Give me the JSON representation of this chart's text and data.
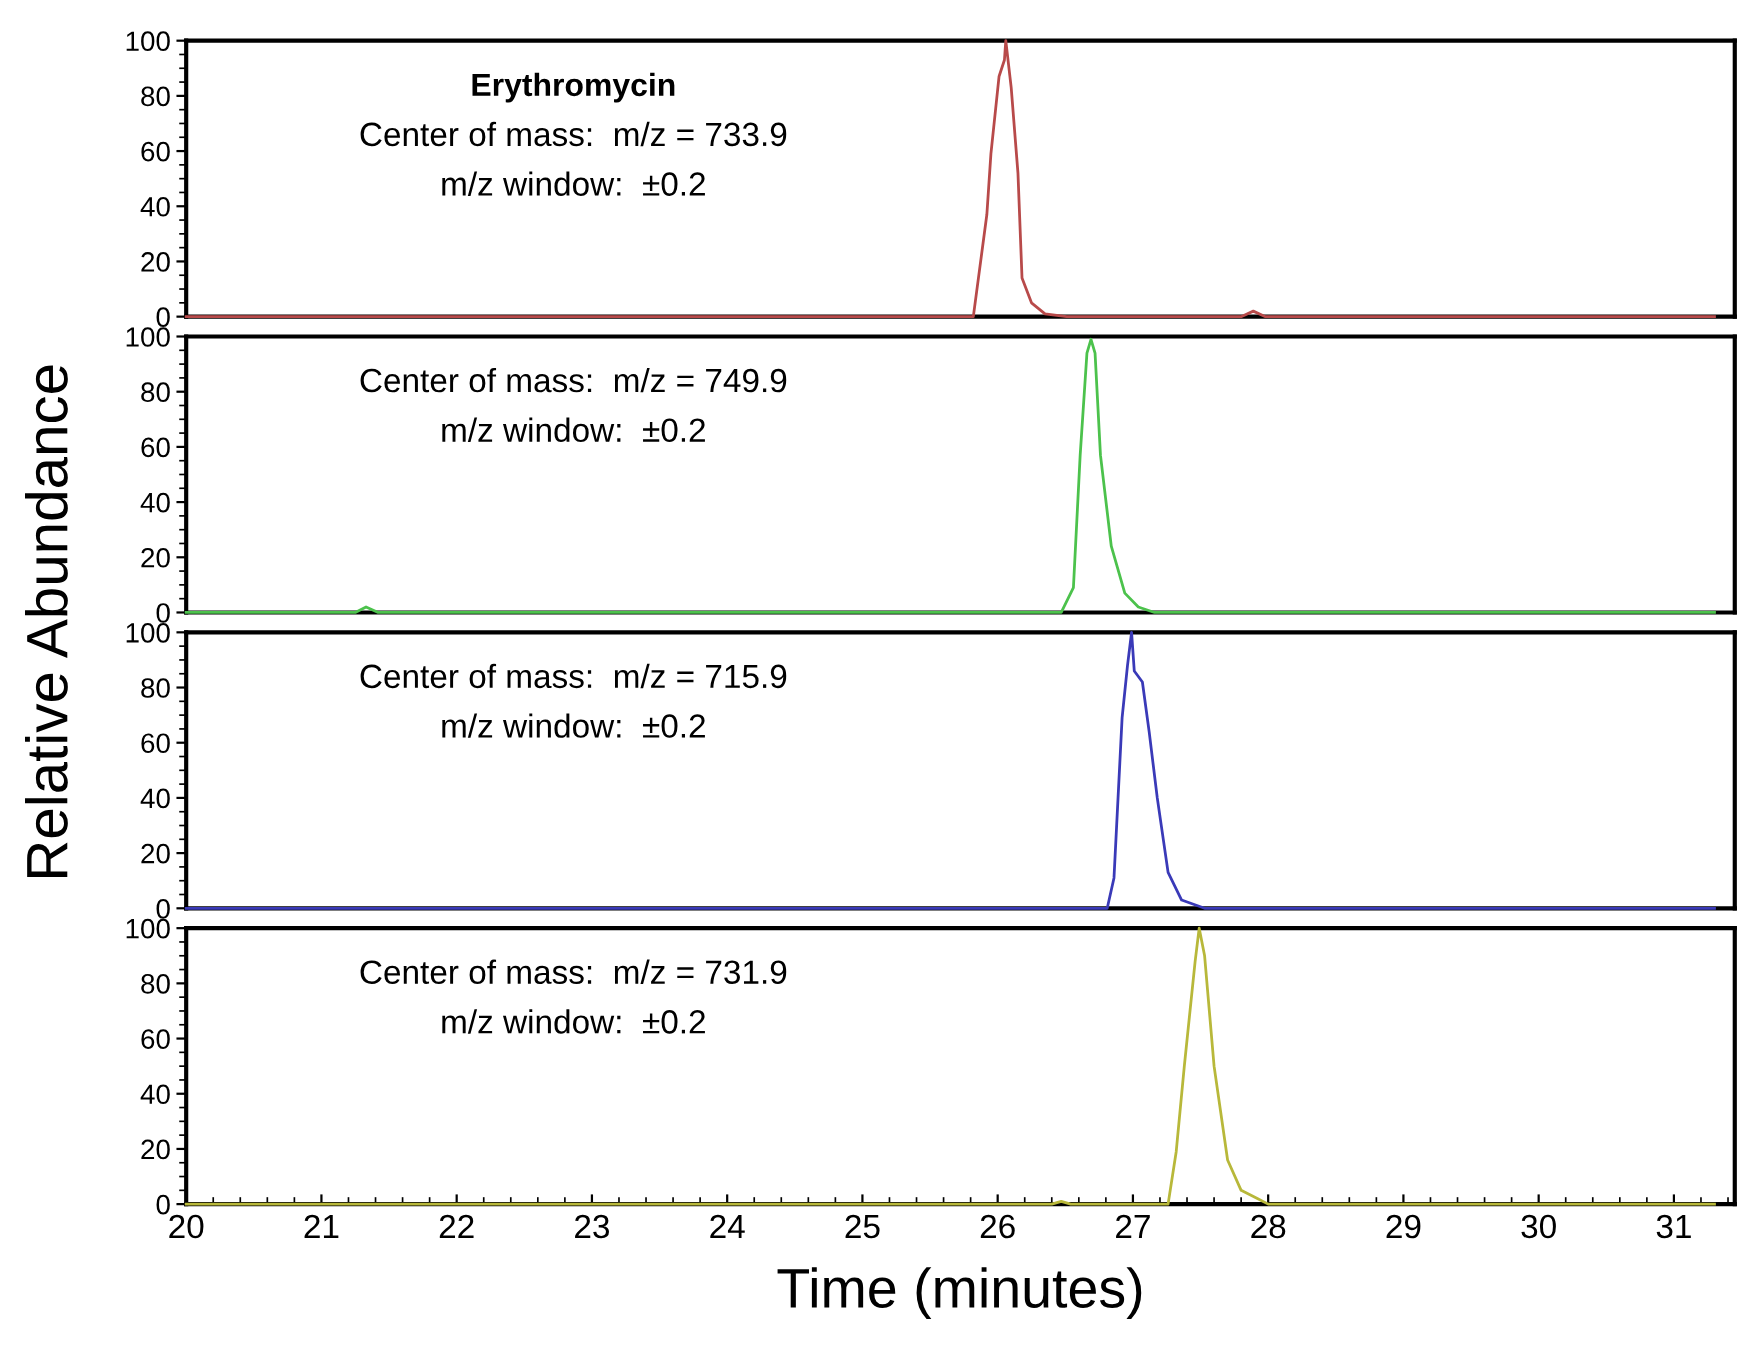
{
  "chart_data": [
    {
      "type": "line",
      "ylabel": "Relative Abundance",
      "xlim": [
        20,
        31.45
      ],
      "ylim": [
        0,
        100
      ],
      "xticks": [
        20,
        21,
        22,
        23,
        24,
        25,
        26,
        27,
        28,
        29,
        30,
        31
      ],
      "yticks": [
        0,
        20,
        40,
        60,
        80,
        100
      ],
      "tick_labels": "y",
      "grid": false,
      "legend": false,
      "annotations": [
        "Erythromycin",
        "Center of mass:  m/z = 733.9",
        "m/z window:  ±0.2"
      ],
      "series": [
        {
          "color": "#b84a4a",
          "x": [
            20,
            25.82,
            25.92,
            25.95,
            26.01,
            26.05,
            26.06,
            26.1,
            26.15,
            26.18,
            26.25,
            26.35,
            26.51,
            27.8,
            27.89,
            27.98,
            31.3
          ],
          "values": [
            0,
            0,
            37,
            59,
            87,
            93,
            100,
            83,
            52,
            14,
            5,
            1,
            0,
            0,
            2,
            0,
            0
          ]
        }
      ]
    },
    {
      "type": "line",
      "xlim": [
        20,
        31.45
      ],
      "ylim": [
        0,
        100
      ],
      "xticks": [
        20,
        21,
        22,
        23,
        24,
        25,
        26,
        27,
        28,
        29,
        30,
        31
      ],
      "yticks": [
        0,
        20,
        40,
        60,
        80,
        100
      ],
      "tick_labels": "y",
      "grid": false,
      "legend": false,
      "annotations": [
        "Center of mass:  m/z = 749.9",
        "m/z window:  ±0.2"
      ],
      "series": [
        {
          "color": "#4cc24c",
          "x": [
            20,
            21.25,
            21.33,
            21.42,
            26.47,
            26.56,
            26.61,
            26.66,
            26.69,
            26.72,
            26.76,
            26.84,
            26.94,
            27.04,
            27.16,
            31.3
          ],
          "values": [
            0,
            0,
            2,
            0,
            0,
            9,
            57,
            94,
            99,
            94,
            57,
            24,
            7,
            2,
            0,
            0
          ]
        }
      ]
    },
    {
      "type": "line",
      "xlim": [
        20,
        31.45
      ],
      "ylim": [
        0,
        100
      ],
      "xticks": [
        20,
        21,
        22,
        23,
        24,
        25,
        26,
        27,
        28,
        29,
        30,
        31
      ],
      "yticks": [
        0,
        20,
        40,
        60,
        80,
        100
      ],
      "tick_labels": "y",
      "grid": false,
      "legend": false,
      "annotations": [
        "Center of mass:  m/z = 715.9",
        "m/z window:  ±0.2"
      ],
      "series": [
        {
          "color": "#3a3ab8",
          "x": [
            20,
            26.81,
            26.86,
            26.92,
            26.96,
            26.99,
            27.01,
            27.07,
            27.12,
            27.18,
            27.26,
            27.36,
            27.53,
            31.3
          ],
          "values": [
            0,
            0,
            11,
            69,
            88,
            100,
            86,
            82,
            64,
            40,
            13,
            3,
            0,
            0
          ]
        }
      ]
    },
    {
      "type": "line",
      "xlabel": "Time (minutes)",
      "xlim": [
        20,
        31.45
      ],
      "ylim": [
        0,
        100
      ],
      "xticks": [
        20,
        21,
        22,
        23,
        24,
        25,
        26,
        27,
        28,
        29,
        30,
        31
      ],
      "yticks": [
        0,
        20,
        40,
        60,
        80,
        100
      ],
      "grid": false,
      "legend": false,
      "annotations": [
        "Center of mass:  m/z = 731.9",
        "m/z window:  ±0.2"
      ],
      "series": [
        {
          "color": "#b8b83a",
          "x": [
            20,
            26.4,
            26.47,
            26.54,
            27.26,
            27.32,
            27.38,
            27.46,
            27.49,
            27.53,
            27.6,
            27.7,
            27.8,
            27.92,
            28.0,
            31.3
          ],
          "values": [
            0,
            0,
            1,
            0,
            0,
            19,
            50,
            88,
            100,
            90,
            50,
            16,
            5,
            2,
            0,
            0
          ]
        }
      ]
    }
  ]
}
